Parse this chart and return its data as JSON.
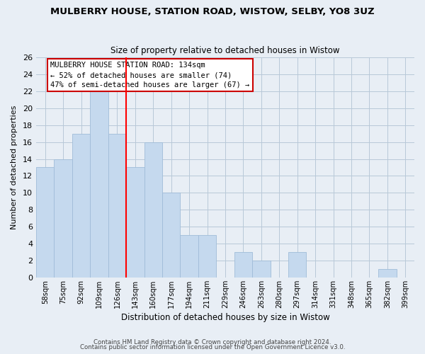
{
  "title": "MULBERRY HOUSE, STATION ROAD, WISTOW, SELBY, YO8 3UZ",
  "subtitle": "Size of property relative to detached houses in Wistow",
  "xlabel": "Distribution of detached houses by size in Wistow",
  "ylabel": "Number of detached properties",
  "bin_labels": [
    "58sqm",
    "75sqm",
    "92sqm",
    "109sqm",
    "126sqm",
    "143sqm",
    "160sqm",
    "177sqm",
    "194sqm",
    "211sqm",
    "229sqm",
    "246sqm",
    "263sqm",
    "280sqm",
    "297sqm",
    "314sqm",
    "331sqm",
    "348sqm",
    "365sqm",
    "382sqm",
    "399sqm"
  ],
  "bar_heights": [
    13,
    14,
    17,
    22,
    17,
    13,
    16,
    10,
    5,
    5,
    0,
    3,
    2,
    0,
    3,
    0,
    0,
    0,
    0,
    1,
    0
  ],
  "bar_color": "#c5d9ee",
  "bar_edge_color": "#a0bcd8",
  "redline_x": 4.5,
  "ylim": [
    0,
    26
  ],
  "yticks": [
    0,
    2,
    4,
    6,
    8,
    10,
    12,
    14,
    16,
    18,
    20,
    22,
    24,
    26
  ],
  "annotation_line1": "MULBERRY HOUSE STATION ROAD: 134sqm",
  "annotation_line2": "← 52% of detached houses are smaller (74)",
  "annotation_line3": "47% of semi-detached houses are larger (67) →",
  "footer_line1": "Contains HM Land Registry data © Crown copyright and database right 2024.",
  "footer_line2": "Contains public sector information licensed under the Open Government Licence v3.0.",
  "bg_color": "#e8eef5",
  "plot_bg_color": "#e8eef5",
  "grid_color": "#b8c8d8"
}
